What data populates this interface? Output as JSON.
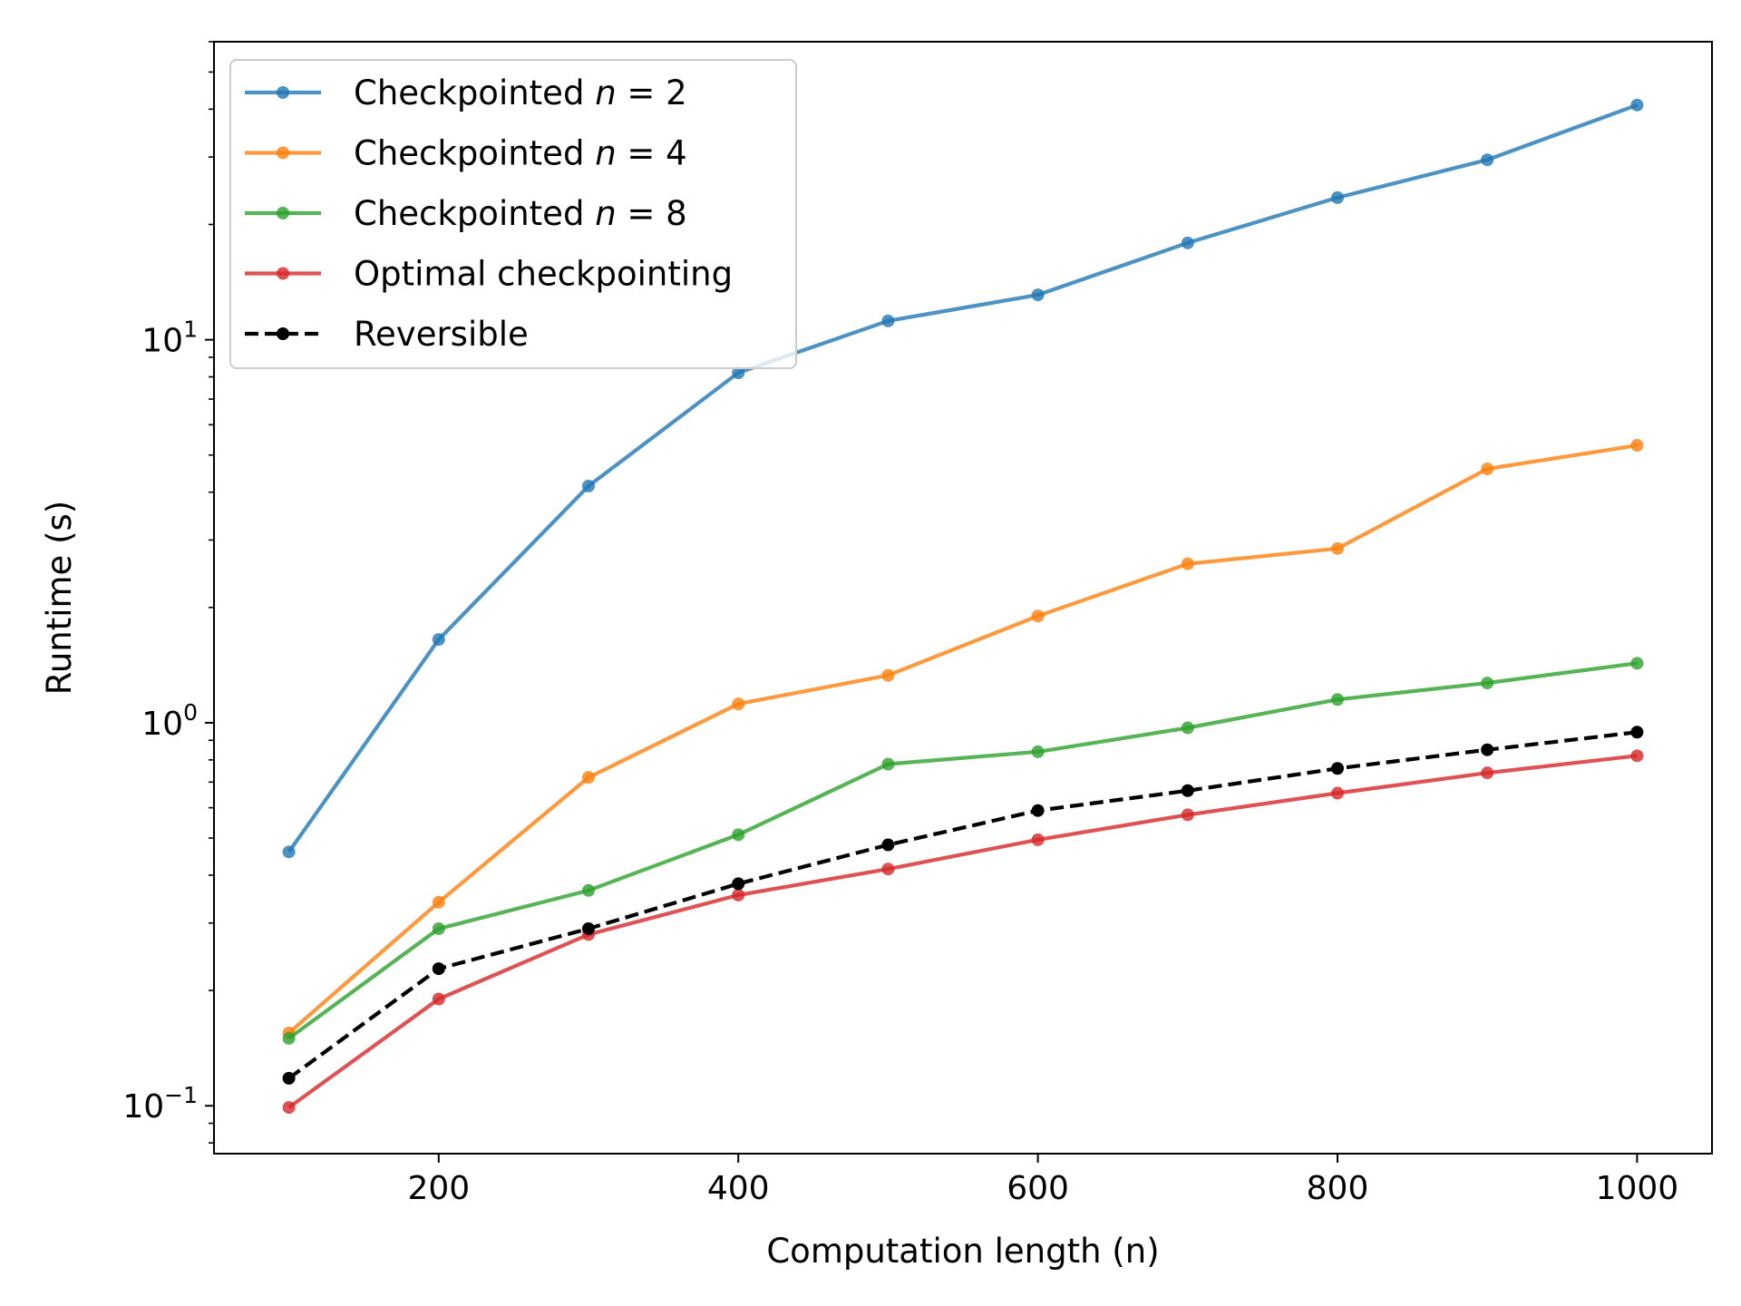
{
  "chart_data": {
    "type": "line",
    "xlabel": "Computation length (n)",
    "ylabel": "Runtime (s)",
    "yscale": "log",
    "xlim": [
      50,
      1050
    ],
    "ylim": [
      0.075,
      60
    ],
    "x_ticks": [
      200,
      400,
      600,
      800,
      1000
    ],
    "y_ticks": [
      {
        "value": 0.1,
        "base": "10",
        "exp": "−1"
      },
      {
        "value": 1,
        "base": "10",
        "exp": "0"
      },
      {
        "value": 10,
        "base": "10",
        "exp": "1"
      }
    ],
    "legend_position": "upper-left",
    "x": [
      100,
      200,
      300,
      400,
      500,
      600,
      700,
      800,
      900,
      1000
    ],
    "series": [
      {
        "name": "Checkpointed",
        "math": "n = 2",
        "color": "#1f77b4",
        "dash": "solid",
        "values": [
          0.46,
          1.65,
          4.15,
          8.2,
          11.2,
          13.1,
          17.9,
          23.5,
          29.5,
          41.0
        ]
      },
      {
        "name": "Checkpointed",
        "math": "n = 4",
        "color": "#ff7f0e",
        "dash": "solid",
        "values": [
          0.155,
          0.34,
          0.72,
          1.12,
          1.33,
          1.9,
          2.6,
          2.85,
          4.6,
          5.3
        ]
      },
      {
        "name": "Checkpointed",
        "math": "n = 8",
        "color": "#2ca02c",
        "dash": "solid",
        "values": [
          0.15,
          0.29,
          0.365,
          0.51,
          0.78,
          0.84,
          0.97,
          1.15,
          1.27,
          1.43
        ]
      },
      {
        "name": "Optimal checkpointing",
        "math": "",
        "color": "#d62728",
        "dash": "solid",
        "values": [
          0.099,
          0.19,
          0.28,
          0.355,
          0.415,
          0.495,
          0.575,
          0.655,
          0.74,
          0.82
        ]
      },
      {
        "name": "Reversible",
        "math": "",
        "color": "#000000",
        "dash": "dashed",
        "values": [
          0.118,
          0.228,
          0.29,
          0.38,
          0.48,
          0.59,
          0.665,
          0.76,
          0.85,
          0.945
        ]
      }
    ]
  }
}
